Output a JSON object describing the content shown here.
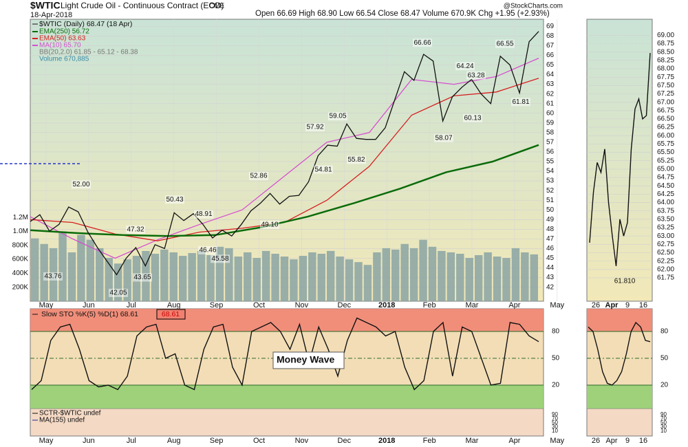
{
  "header": {
    "symbol": "$WTIC",
    "name": "Light Crude Oil - Continuous Contract (EOD)",
    "exchange": "CME",
    "date": "18-Apr-2018",
    "quote": "Open 66.69 High 68.90 Low 66.54 Close 68.47 Volume 670.9K Chg +1.95 (+2.93%)",
    "credit": "@StockCharts.com"
  },
  "chart_data": [
    {
      "type": "line",
      "legend_title": "$WTIC (Daily) 68.47 (18 Apr)",
      "x_labels": [
        "May",
        "Jun",
        "Jul",
        "Aug",
        "Sep",
        "Oct",
        "Nov",
        "Dec",
        "2018",
        "Feb",
        "Mar",
        "Apr",
        "May"
      ],
      "series": [
        {
          "name": "$WTIC",
          "color": "#111111",
          "values": [
            48.8,
            49.5,
            47.8,
            48.5,
            50.3,
            49.8,
            47.7,
            46.1,
            44.7,
            43.3,
            45.0,
            46.1,
            44.2,
            46.4,
            46.0,
            49.7,
            48.9,
            49.6,
            48.5,
            47.1,
            47.9,
            47.3,
            48.5,
            49.9,
            50.7,
            51.7,
            50.6,
            51.4,
            51.5,
            52.9,
            55.6,
            56.7,
            56.6,
            58.9,
            57.4,
            57.3,
            57.3,
            58.5,
            61.4,
            64.3,
            63.4,
            66.1,
            65.4,
            59.2,
            61.7,
            62.7,
            63.5,
            62.0,
            61.0,
            65.9,
            65.0,
            62.1,
            67.4,
            68.47
          ]
        },
        {
          "name": "EMA(250) 56.72",
          "color": "#0a6b0a",
          "values": [
            47.9,
            47.6,
            47.4,
            47.3,
            47.4,
            48.2,
            49.3,
            50.7,
            52.2,
            53.9,
            55.0,
            56.72
          ]
        },
        {
          "name": "EMA(50) 63.63",
          "color": "#d62020",
          "values": [
            49.0,
            48.7,
            47.5,
            46.8,
            47.7,
            48.1,
            48.7,
            51.0,
            54.5,
            59.8,
            61.8,
            62.2,
            63.63
          ]
        },
        {
          "name": "MA(10) 65.70",
          "color": "#d64fd0",
          "values": [
            49.3,
            47.0,
            45.0,
            46.9,
            48.5,
            50.0,
            53.5,
            57.0,
            58.0,
            63.5,
            63.0,
            63.8,
            65.7
          ]
        }
      ],
      "legend_notes": [
        "BB(20,2.0) 61.85 - 65.12 - 68.38",
        "Volume 670,885"
      ],
      "ylim": [
        40.55,
        69.73
      ],
      "yticks": [
        42,
        43,
        44,
        45,
        46,
        47,
        48,
        49,
        50,
        51,
        52,
        53,
        54,
        55,
        56,
        57,
        58,
        59,
        60,
        61,
        62,
        63,
        64,
        65,
        66,
        67,
        68,
        69
      ],
      "grid": true,
      "volume": {
        "color": "#8aa3a3",
        "values": [
          900000,
          820000,
          760000,
          1000000,
          700000,
          950000,
          880000,
          760000,
          620000,
          540000,
          600000,
          650000,
          720000,
          680000,
          740000,
          700000,
          650000,
          690000,
          720000,
          660000,
          780000,
          760000,
          640000,
          700000,
          620000,
          720000,
          680000,
          640000,
          600000,
          650000,
          700000,
          680000,
          720000,
          640000,
          600000,
          560000,
          520000,
          700000,
          760000,
          740000,
          820000,
          760000,
          880000,
          780000,
          720000,
          700000,
          680000,
          620000,
          660000,
          700000,
          640000,
          620000,
          760000,
          700000,
          670885
        ],
        "ylim": [
          0,
          4040000
        ],
        "yticks": [
          {
            "value": 200000,
            "label": "200K"
          },
          {
            "value": 400000,
            "label": "400K"
          },
          {
            "value": 600000,
            "label": "600K"
          },
          {
            "value": 800000,
            "label": "800K"
          },
          {
            "value": 1000000,
            "label": "1.0M"
          },
          {
            "value": 1200000,
            "label": "1.2M"
          }
        ]
      },
      "annotations": [
        {
          "value": 52,
          "label": "52.00"
        },
        {
          "value": 43.76,
          "label": "43.76"
        },
        {
          "value": 42.05,
          "label": "42.05"
        },
        {
          "value": 47.32,
          "label": "47.32"
        },
        {
          "value": 43.65,
          "label": "43.65"
        },
        {
          "value": 50.43,
          "label": "50.43"
        },
        {
          "value": 48.91,
          "label": "48.91"
        },
        {
          "value": 46.46,
          "label": "46.46"
        },
        {
          "value": 45.58,
          "label": "45.58"
        },
        {
          "value": 52.86,
          "label": "52.86"
        },
        {
          "value": 49.1,
          "label": "49.10"
        },
        {
          "value": 57.92,
          "label": "57.92"
        },
        {
          "value": 54.81,
          "label": "54.81"
        },
        {
          "value": 59.05,
          "label": "59.05"
        },
        {
          "value": 55.82,
          "label": "55.82"
        },
        {
          "value": 66.66,
          "label": "66.66"
        },
        {
          "value": 58.07,
          "label": "58.07"
        },
        {
          "value": 64.24,
          "label": "64.24"
        },
        {
          "value": 63.28,
          "label": "63.28"
        },
        {
          "value": 60.13,
          "label": "60.13"
        },
        {
          "value": 66.55,
          "label": "66.55"
        },
        {
          "value": 61.81,
          "label": "61.81"
        }
      ]
    },
    {
      "type": "oscillator",
      "title": "Slow STO %K(5) %D(1) 68.61",
      "last_label": "68.61",
      "annotation": "Money Wave",
      "x_labels": [
        "May",
        "Jun",
        "Jul",
        "Aug",
        "Sep",
        "Oct",
        "Nov",
        "Dec",
        "2018",
        "Feb",
        "Mar",
        "Apr",
        "May"
      ],
      "series": [
        {
          "name": "%K",
          "color": "#111111",
          "values": [
            15,
            25,
            70,
            85,
            88,
            60,
            25,
            18,
            20,
            15,
            30,
            75,
            85,
            88,
            50,
            55,
            20,
            15,
            60,
            85,
            88,
            40,
            20,
            80,
            85,
            90,
            80,
            60,
            88,
            45,
            85,
            60,
            30,
            70,
            95,
            90,
            85,
            75,
            80,
            40,
            15,
            25,
            80,
            90,
            30,
            85,
            80,
            50,
            20,
            22,
            90,
            88,
            75,
            68.61
          ]
        }
      ],
      "ylim": [
        -6.2,
        105.4
      ],
      "yticks": [
        20,
        50,
        80
      ]
    },
    {
      "type": "text-panel",
      "lines": [
        "SCTR-$WTIC undef",
        "MA(155) undef"
      ],
      "ylim": [
        -14,
        113
      ],
      "yticks": [
        90,
        70,
        50,
        30,
        10
      ]
    },
    {
      "type": "line",
      "x_labels": [
        "26",
        "Apr",
        "9",
        "16"
      ],
      "series": [
        {
          "name": "$WTIC",
          "color": "#111111",
          "values": [
            62.8,
            64.3,
            65.2,
            64.9,
            65.6,
            64.0,
            63.0,
            62.1,
            63.5,
            63.0,
            63.4,
            65.6,
            66.8,
            67.1,
            66.5,
            66.6,
            68.47
          ]
        }
      ],
      "annotations": [
        {
          "value": 61.81,
          "label": "61.810"
        }
      ],
      "ylim": [
        61.05,
        69.48
      ],
      "yticks": [
        {
          "value": 61.75,
          "label": "61.75"
        },
        {
          "value": 62,
          "label": "62.00"
        },
        {
          "value": 62.25,
          "label": "62.25"
        },
        {
          "value": 62.5,
          "label": "62.50"
        },
        {
          "value": 62.75,
          "label": "62.75"
        },
        {
          "value": 63,
          "label": "63.00"
        },
        {
          "value": 63.25,
          "label": "63.25"
        },
        {
          "value": 63.5,
          "label": "63.50"
        },
        {
          "value": 63.75,
          "label": "63.75"
        },
        {
          "value": 64,
          "label": "64.00"
        },
        {
          "value": 64.25,
          "label": "64.25"
        },
        {
          "value": 64.5,
          "label": "64.50"
        },
        {
          "value": 64.75,
          "label": "64.75"
        },
        {
          "value": 65,
          "label": "65.00"
        },
        {
          "value": 65.25,
          "label": "65.25"
        },
        {
          "value": 65.5,
          "label": "65.50"
        },
        {
          "value": 65.75,
          "label": "65.75"
        },
        {
          "value": 66,
          "label": "66.00"
        },
        {
          "value": 66.25,
          "label": "66.25"
        },
        {
          "value": 66.5,
          "label": "66.50"
        },
        {
          "value": 66.75,
          "label": "66.75"
        },
        {
          "value": 67,
          "label": "67.00"
        },
        {
          "value": 67.25,
          "label": "67.25"
        },
        {
          "value": 67.5,
          "label": "67.50"
        },
        {
          "value": 67.75,
          "label": "67.75"
        },
        {
          "value": 68,
          "label": "68.00"
        },
        {
          "value": 68.25,
          "label": "68.25"
        },
        {
          "value": 68.5,
          "label": "68.50"
        },
        {
          "value": 68.75,
          "label": "68.75"
        },
        {
          "value": 69,
          "label": "69.00"
        }
      ]
    },
    {
      "type": "oscillator",
      "x_labels": [
        "26",
        "Apr",
        "9",
        "16"
      ],
      "series": [
        {
          "name": "%K",
          "color": "#111111",
          "values": [
            85,
            80,
            60,
            35,
            22,
            20,
            25,
            35,
            55,
            80,
            90,
            85,
            70,
            68.61
          ]
        }
      ],
      "ylim": [
        -6.2,
        105.4
      ],
      "yticks": [
        20,
        50,
        80
      ]
    }
  ]
}
